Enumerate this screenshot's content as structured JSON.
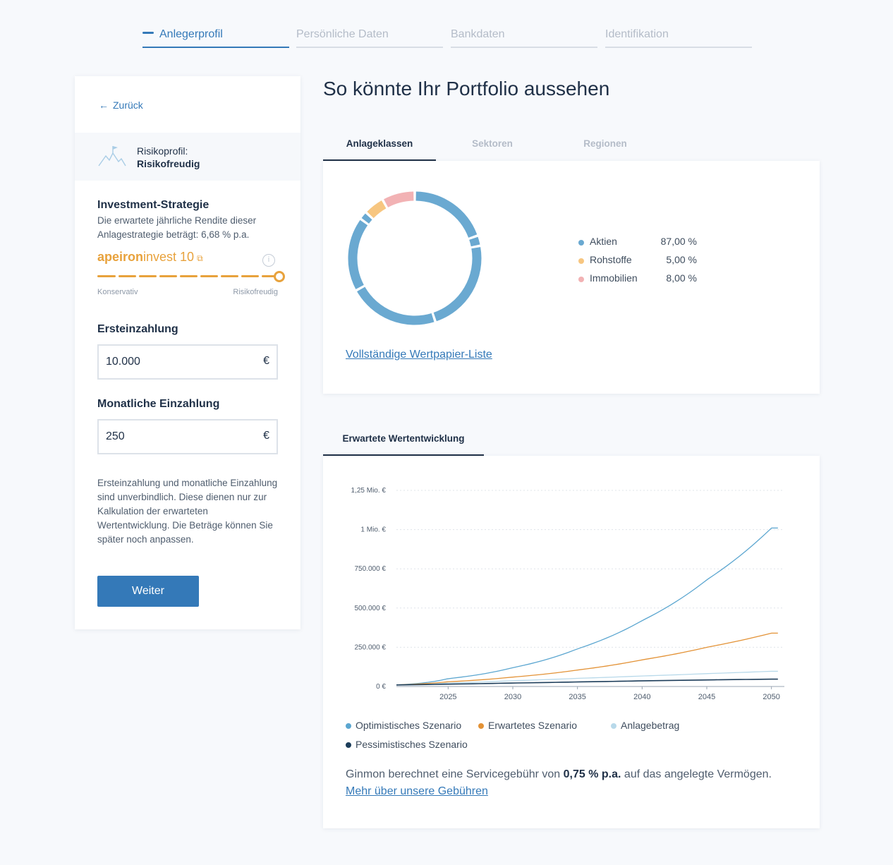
{
  "stepper": [
    {
      "label": "Anlegerprofil",
      "active": true
    },
    {
      "label": "Persönliche Daten",
      "active": false
    },
    {
      "label": "Bankdaten",
      "active": false
    },
    {
      "label": "Identifikation",
      "active": false
    }
  ],
  "left": {
    "back_label": "Zurück",
    "profile_label": "Risikoprofil:",
    "profile_value": "Risikofreudig",
    "strategy_title": "Investment-Strategie",
    "strategy_desc": "Die erwartete jährliche Rendite dieser Anlagestrategie beträgt: 6,68 % p.a.",
    "brand_bold": "apeiron",
    "brand_rest": "invest 10",
    "slider_min_label": "Konservativ",
    "slider_max_label": "Risikofreudig",
    "slider_value_fraction": 1.0,
    "initial_title": "Ersteinzahlung",
    "initial_value": "10.000",
    "monthly_title": "Monatliche Einzahlung",
    "monthly_value": "250",
    "currency": "€",
    "note": "Ersteinzahlung und monatliche Einzahlung sind unverbindlich. Diese dienen nur zur Kalkulation der erwarteten Wertentwicklung. Die Beträge können Sie später noch anpassen.",
    "continue_label": "Weiter"
  },
  "right": {
    "title": "So könnte Ihr Portfolio aussehen",
    "tabs": [
      "Anlageklassen",
      "Sektoren",
      "Regionen"
    ],
    "allocation": [
      {
        "name": "Aktien",
        "value": "87,00 %",
        "pct": 87,
        "color": "#6aa9d1"
      },
      {
        "name": "Rohstoffe",
        "value": "5,00 %",
        "pct": 5,
        "color": "#f7c680"
      },
      {
        "name": "Immobilien",
        "value": "8,00 %",
        "pct": 8,
        "color": "#f2b2b4"
      }
    ],
    "securities_link": "Vollständige Wertpapier-Liste",
    "chart_tab": "Erwartete Wertentwicklung",
    "fee_pre": "Ginmon berechnet eine Servicegebühr von ",
    "fee_bold": "0,75 % p.a.",
    "fee_mid": " auf das angelegte Vermögen. ",
    "fee_link": "Mehr über unsere Gebühren"
  },
  "chart_data": {
    "type": "line",
    "x": [
      2021,
      2025,
      2030,
      2035,
      2040,
      2045,
      2050
    ],
    "xticks": [
      "2025",
      "2030",
      "2035",
      "2040",
      "2045",
      "2050"
    ],
    "yticks": [
      "0 €",
      "250.000 €",
      "500.000 €",
      "750.000 €",
      "1 Mio. €",
      "1,25 Mio. €"
    ],
    "ylim": [
      0,
      1250000
    ],
    "series": [
      {
        "name": "Optimistisches Szenario",
        "color": "#5ba6d0",
        "values": [
          10000,
          50000,
          120000,
          240000,
          420000,
          680000,
          1010000
        ]
      },
      {
        "name": "Erwartetes Szenario",
        "color": "#e39236",
        "values": [
          10000,
          30000,
          60000,
          105000,
          170000,
          250000,
          340000
        ]
      },
      {
        "name": "Anlagebetrag",
        "color": "#b8d9ea",
        "values": [
          10000,
          22000,
          37000,
          52000,
          67000,
          82000,
          97000
        ]
      },
      {
        "name": "Pessimistisches Szenario",
        "color": "#1c3d5a",
        "values": [
          10000,
          15000,
          22000,
          29000,
          36000,
          42000,
          47000
        ]
      }
    ]
  }
}
